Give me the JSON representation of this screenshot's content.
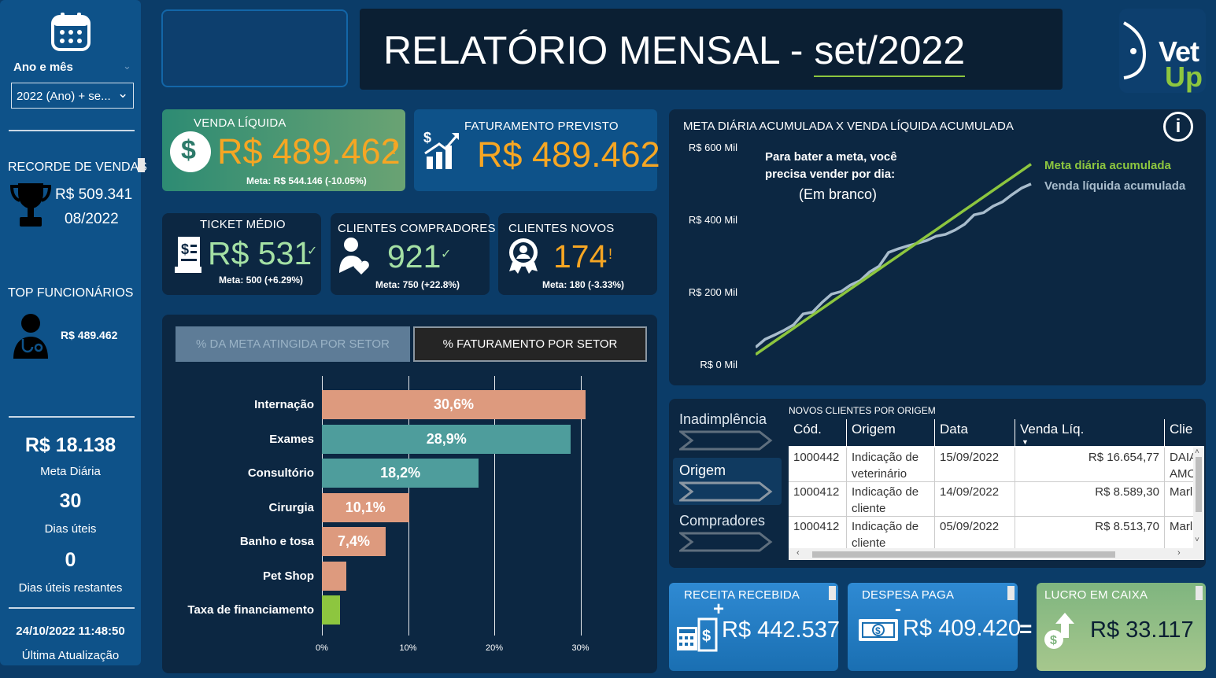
{
  "sidebar": {
    "filter_label": "Ano e mês",
    "filter_value": "2022 (Ano) + se...",
    "record_title": "RECORDE DE VENDAS",
    "record_value": "R$ 509.341",
    "record_date": "08/2022",
    "top_employees_title": "TOP FUNCIONÁRIOS",
    "top_employee_value": "R$ 489.462",
    "daily_goal_value": "R$ 18.138",
    "daily_goal_label": "Meta Diária",
    "work_days_value": "30",
    "work_days_label": "Dias úteis",
    "remaining_days_value": "0",
    "remaining_days_label": "Dias úteis restantes",
    "last_update_value": "24/10/2022 11:48:50",
    "last_update_label": "Última Atualização"
  },
  "header": {
    "title_prefix": "RELATÓRIO MENSAL - ",
    "title_period": "set/2022",
    "logo_line1": "Vet",
    "logo_line2": "Up"
  },
  "kpis": {
    "venda_liquida": {
      "label": "VENDA LÍQUIDA",
      "value": "R$ 489.462",
      "flag": "!",
      "meta": "Meta: R$ 544.146 (-10.05%)"
    },
    "faturamento_previsto": {
      "label": "FATURAMENTO PREVISTO",
      "value": "R$ 489.462"
    },
    "ticket_medio": {
      "label": "TICKET MÉDIO",
      "value": "R$ 531",
      "flag": "✓",
      "meta": "Meta: 500 (+6.29%)"
    },
    "clientes_compradores": {
      "label": "CLIENTES COMPRADORES",
      "value": "921",
      "flag": "✓",
      "meta": "Meta: 750 (+22.8%)"
    },
    "clientes_novos": {
      "label": "CLIENTES NOVOS",
      "value": "174",
      "flag": "!",
      "meta": "Meta: 180 (-3.33%)"
    }
  },
  "sector_tabs": [
    {
      "label": "% DA META ATINGIDA POR SETOR"
    },
    {
      "label": "% FATURAMENTO POR SETOR"
    }
  ],
  "bottom_cards": {
    "receita": {
      "label": "RECEITA RECEBIDA",
      "sign": "+",
      "value": "R$ 442.537"
    },
    "despesa": {
      "label": "DESPESA PAGA",
      "sign": "-",
      "value": "R$ 409.420",
      "equals": "="
    },
    "lucro": {
      "label": "LUCRO EM CAIXA",
      "value": "R$ 33.117"
    }
  },
  "line_chart_title": "META DIÁRIA ACUMULADA X VENDA LÍQUIDA ACUMULADA",
  "line_chart_note": {
    "line1": "Para bater a meta, você",
    "line2": "precisa vender por dia:",
    "line3": "(Em branco)"
  },
  "origin_nav": [
    {
      "label": "Inadimplência"
    },
    {
      "label": "Origem"
    },
    {
      "label": "Compradores"
    }
  ],
  "table": {
    "title": "NOVOS CLIENTES POR ORIGEM",
    "columns": [
      "Cód.",
      "Origem",
      "Data",
      "Venda Líq.",
      "Clie"
    ],
    "rows": [
      {
        "cod": "1000442",
        "origem1": "Indicação de",
        "origem2": "veterinário",
        "data": "15/09/2022",
        "venda": "R$ 16.654,77",
        "cli1": "DAIA",
        "cli2": "AMO"
      },
      {
        "cod": "1000412",
        "origem1": "Indicação de",
        "origem2": "cliente",
        "data": "14/09/2022",
        "venda": "R$ 8.589,30",
        "cli1": "Marl",
        "cli2": ""
      },
      {
        "cod": "1000412",
        "origem1": "Indicação de",
        "origem2": "cliente",
        "data": "05/09/2022",
        "venda": "R$ 8.513,70",
        "cli1": "Marl",
        "cli2": ""
      }
    ]
  },
  "chart_data": [
    {
      "type": "bar",
      "orientation": "horizontal",
      "categories": [
        "Internação",
        "Exames",
        "Consultório",
        "Cirurgia",
        "Banho e tosa",
        "Pet Shop",
        "Taxa de financiamento"
      ],
      "values": [
        30.6,
        28.9,
        18.2,
        10.1,
        7.4,
        2.8,
        2.1
      ],
      "data_labels": [
        "30,6%",
        "28,9%",
        "18,2%",
        "10,1%",
        "7,4%",
        "",
        ""
      ],
      "colors": [
        "#dd9a7e",
        "#4e9d9c",
        "#4e9d9c",
        "#dd9a7e",
        "#dd9a7e",
        "#dd9a7e",
        "#8dc63f"
      ],
      "xlim": [
        0,
        30
      ],
      "xticks": [
        "0%",
        "10%",
        "20%",
        "30%"
      ],
      "grid": true
    },
    {
      "type": "line",
      "title": "META DIÁRIA ACUMULADA X VENDA LÍQUIDA ACUMULADA",
      "x": [
        1,
        2,
        3,
        4,
        5,
        6,
        7,
        8,
        9,
        10,
        11,
        12,
        13,
        14,
        15,
        16,
        17,
        18,
        19,
        20,
        21,
        22,
        23,
        24,
        25,
        26,
        27,
        28,
        29,
        30
      ],
      "ylim": [
        0,
        600000
      ],
      "yticks": [
        "R$ 0 Mil",
        "R$ 200 Mil",
        "R$ 400 Mil",
        "R$ 600 Mil"
      ],
      "series": [
        {
          "name": "Meta diária acumulada",
          "color": "#8dc63f",
          "values": [
            18138,
            36276,
            54414,
            72552,
            90690,
            108828,
            126966,
            145104,
            163242,
            181380,
            199518,
            217656,
            235794,
            253932,
            272070,
            290208,
            308346,
            326484,
            344622,
            362760,
            380898,
            399036,
            417174,
            435312,
            453450,
            471588,
            489726,
            507864,
            526002,
            544146
          ]
        },
        {
          "name": "Venda líquida acumulada",
          "color": "#a8bccc",
          "values": [
            38000,
            60000,
            72000,
            85000,
            100000,
            130000,
            135000,
            162000,
            185000,
            192000,
            210000,
            222000,
            246000,
            262000,
            300000,
            310000,
            318000,
            325000,
            333000,
            345000,
            350000,
            362000,
            378000,
            404000,
            410000,
            428000,
            440000,
            460000,
            478000,
            489462
          ]
        }
      ],
      "legend": "top-right"
    }
  ]
}
